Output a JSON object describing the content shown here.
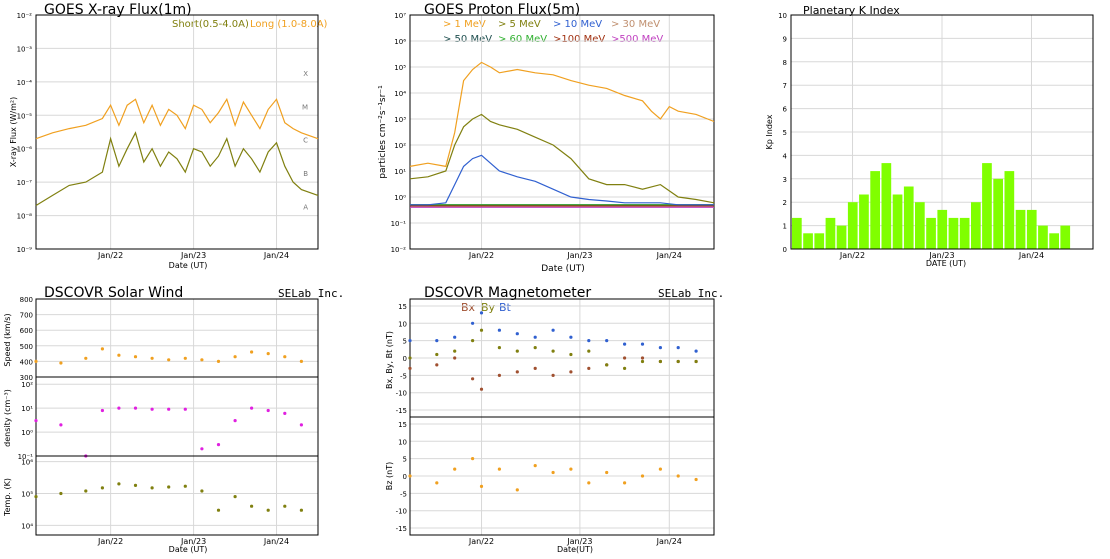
{
  "panels": {
    "xray": {
      "title": "GOES X-ray Flux(1m)",
      "legend_short": "Short(0.5-4.0A)",
      "legend_long": "Long (1.0-8.0A)",
      "ylabel": "X-ray Flux (W/m²)",
      "xlabel": "Date (UT)",
      "yticks": [
        "10⁻⁹",
        "10⁻⁸",
        "10⁻⁷",
        "10⁻⁶",
        "10⁻⁵",
        "10⁻⁴",
        "10⁻³",
        "10⁻²"
      ],
      "classes": [
        "A",
        "B",
        "C",
        "M",
        "X"
      ],
      "xticks": [
        "Jan/22",
        "Jan/23",
        "Jan/24"
      ]
    },
    "proton": {
      "title": "GOES Proton Flux(5m)",
      "ylabel": "particles cm⁻²s⁻¹sr⁻¹",
      "xlabel": "Date (UT)",
      "yticks": [
        "10⁻²",
        "10⁻¹",
        "10⁰",
        "10¹",
        "10²",
        "10³",
        "10⁴",
        "10⁵",
        "10⁶",
        "10⁷"
      ],
      "legend": [
        "> 1 MeV",
        "> 5 MeV",
        "> 10 MeV",
        "> 30 MeV",
        "> 50 MeV",
        "> 60 MeV",
        ">100 MeV",
        ">500 MeV"
      ],
      "xticks": [
        "Jan/22",
        "Jan/23",
        "Jan/24"
      ]
    },
    "kp": {
      "title": "Planetary K Index",
      "ylabel": "Kp Index",
      "xlabel": "DATE (UT)",
      "yticks": [
        "0",
        "1",
        "2",
        "3",
        "4",
        "5",
        "6",
        "7",
        "8",
        "9",
        "10"
      ],
      "xticks": [
        "Jan/22",
        "Jan/23",
        "Jan/24"
      ]
    },
    "wind": {
      "title": "DSCOVR Solar Wind",
      "brand": "SELab Inc.",
      "speed_label": "Speed (km/s)",
      "speed_ticks": [
        "300",
        "400",
        "500",
        "600",
        "700",
        "800"
      ],
      "density_label": "density (cm⁻³)",
      "density_ticks": [
        "10⁻¹",
        "10⁰",
        "10¹",
        "10²"
      ],
      "temp_label": "Temp. (K)",
      "temp_ticks": [
        "10⁴",
        "10⁵",
        "10⁶"
      ],
      "xlabel": "Date (UT)",
      "xticks": [
        "Jan/22",
        "Jan/23",
        "Jan/24"
      ]
    },
    "mag": {
      "title": "DSCOVR Magnetometer",
      "brand": "SELab Inc.",
      "legend": [
        "Bx",
        "By",
        "Bt"
      ],
      "b_label": "Bx, By, Bt (nT)",
      "bz_label": "Bz (nT)",
      "ticks": [
        "-15",
        "-10",
        "-5",
        "0",
        "5",
        "10",
        "15"
      ],
      "xlabel": "Date(UT)",
      "xticks": [
        "Jan/22",
        "Jan/23",
        "Jan/24"
      ]
    }
  },
  "chart_data": [
    {
      "type": "line",
      "title": "GOES X-ray Flux(1m)",
      "ylabel": "X-ray Flux (W/m²)",
      "xlabel": "Date (UT)",
      "yscale": "log",
      "ylim": [
        1e-09,
        0.01
      ],
      "xlim": [
        0,
        3.4
      ],
      "xticks": {
        "values": [
          0.9,
          1.9,
          2.9
        ],
        "labels": [
          "Jan/22",
          "Jan/23",
          "Jan/24"
        ]
      },
      "series": [
        {
          "name": "Long (1.0-8.0A)",
          "color": "#f0a020",
          "x": [
            0,
            0.2,
            0.4,
            0.6,
            0.8,
            0.9,
            1.0,
            1.1,
            1.2,
            1.3,
            1.4,
            1.5,
            1.6,
            1.7,
            1.8,
            1.9,
            2.0,
            2.1,
            2.2,
            2.3,
            2.4,
            2.5,
            2.6,
            2.7,
            2.8,
            2.9,
            3.0,
            3.1,
            3.2,
            3.4
          ],
          "y": [
            2e-06,
            3e-06,
            4e-06,
            5e-06,
            8e-06,
            2e-05,
            5e-06,
            2e-05,
            3e-05,
            6e-06,
            2e-05,
            5e-06,
            1.5e-05,
            1e-05,
            4e-06,
            2e-05,
            1.5e-05,
            6e-06,
            1.2e-05,
            3e-05,
            5e-06,
            2.5e-05,
            1e-05,
            4e-06,
            1.5e-05,
            3e-05,
            6e-06,
            4e-06,
            3e-06,
            2e-06
          ]
        },
        {
          "name": "Short(0.5-4.0A)",
          "color": "#808010",
          "x": [
            0,
            0.2,
            0.4,
            0.6,
            0.8,
            0.9,
            1.0,
            1.1,
            1.2,
            1.3,
            1.4,
            1.5,
            1.6,
            1.7,
            1.8,
            1.9,
            2.0,
            2.1,
            2.2,
            2.3,
            2.4,
            2.5,
            2.6,
            2.7,
            2.8,
            2.9,
            3.0,
            3.1,
            3.2,
            3.4
          ],
          "y": [
            2e-08,
            4e-08,
            8e-08,
            1e-07,
            2e-07,
            2e-06,
            3e-07,
            1e-06,
            3e-06,
            4e-07,
            1e-06,
            3e-07,
            8e-07,
            5e-07,
            2e-07,
            1e-06,
            8e-07,
            3e-07,
            6e-07,
            2e-06,
            3e-07,
            1e-06,
            5e-07,
            2e-07,
            8e-07,
            1.5e-06,
            3e-07,
            1e-07,
            6e-08,
            4e-08
          ]
        }
      ]
    },
    {
      "type": "line",
      "title": "GOES Proton Flux(5m)",
      "ylabel": "particles cm⁻²s⁻¹sr⁻¹",
      "xlabel": "Date (UT)",
      "yscale": "log",
      "ylim": [
        0.01,
        10000000.0
      ],
      "xlim": [
        0,
        3.4
      ],
      "xticks": {
        "values": [
          0.8,
          1.9,
          2.9
        ],
        "labels": [
          "Jan/22",
          "Jan/23",
          "Jan/24"
        ]
      },
      "series": [
        {
          "name": "> 1 MeV",
          "color": "#f0a020",
          "x": [
            0,
            0.2,
            0.4,
            0.5,
            0.6,
            0.7,
            0.8,
            0.9,
            1.0,
            1.2,
            1.4,
            1.6,
            1.8,
            2.0,
            2.2,
            2.4,
            2.6,
            2.7,
            2.8,
            2.9,
            3.0,
            3.2,
            3.4
          ],
          "y": [
            15,
            20,
            15,
            300,
            30000,
            80000,
            150000,
            100000,
            60000,
            80000,
            60000,
            50000,
            30000,
            20000,
            15000,
            8000,
            5000,
            2000,
            1000,
            3000,
            2000,
            1500,
            800
          ]
        },
        {
          "name": "> 5 MeV",
          "color": "#808010",
          "x": [
            0,
            0.2,
            0.4,
            0.5,
            0.6,
            0.7,
            0.8,
            0.9,
            1.0,
            1.2,
            1.4,
            1.6,
            1.8,
            2.0,
            2.2,
            2.4,
            2.6,
            2.8,
            3.0,
            3.2,
            3.4
          ],
          "y": [
            5,
            6,
            10,
            100,
            500,
            1000,
            1500,
            800,
            600,
            400,
            200,
            100,
            30,
            5,
            3,
            3,
            2,
            3,
            1,
            0.8,
            0.6
          ]
        },
        {
          "name": "> 10 MeV",
          "color": "#3060d0",
          "x": [
            0,
            0.2,
            0.4,
            0.5,
            0.6,
            0.7,
            0.8,
            0.9,
            1.0,
            1.2,
            1.4,
            1.6,
            1.8,
            2.0,
            2.2,
            2.4,
            2.6,
            2.8,
            3.0,
            3.2,
            3.4
          ],
          "y": [
            0.5,
            0.5,
            0.6,
            3,
            15,
            30,
            40,
            20,
            10,
            6,
            4,
            2,
            1,
            0.8,
            0.7,
            0.6,
            0.6,
            0.6,
            0.5,
            0.5,
            0.5
          ]
        },
        {
          "name": "> 30 MeV",
          "color": "#c09070",
          "x": [
            0,
            1,
            2,
            3,
            3.4
          ],
          "y": [
            0.5,
            0.5,
            0.5,
            0.5,
            0.5
          ]
        },
        {
          "name": "> 50 MeV",
          "color": "#205050",
          "x": [
            0,
            1,
            2,
            3,
            3.4
          ],
          "y": [
            0.5,
            0.5,
            0.5,
            0.5,
            0.5
          ]
        },
        {
          "name": "> 60 MeV",
          "color": "#30b030",
          "x": [
            0,
            1,
            2,
            3,
            3.4
          ],
          "y": [
            0.5,
            0.5,
            0.5,
            0.5,
            0.5
          ]
        },
        {
          "name": ">100 MeV",
          "color": "#a03010",
          "x": [
            0,
            1,
            2,
            3,
            3.4
          ],
          "y": [
            0.45,
            0.45,
            0.45,
            0.45,
            0.45
          ]
        },
        {
          "name": ">500 MeV",
          "color": "#c040c0",
          "x": [
            0,
            1,
            2,
            3,
            3.4
          ],
          "y": [
            0.4,
            0.4,
            0.4,
            0.4,
            0.4
          ]
        }
      ]
    },
    {
      "type": "bar",
      "title": "Planetary K Index",
      "ylabel": "Kp Index",
      "xlabel": "DATE (UT)",
      "ylim": [
        0,
        10
      ],
      "color": "#80ff00",
      "xticks": {
        "labels": [
          "Jan/22",
          "Jan/23",
          "Jan/24"
        ],
        "bar_index": [
          5,
          13,
          21
        ]
      },
      "values": [
        1.33,
        0.67,
        0.67,
        1.33,
        1.0,
        2.0,
        2.33,
        3.33,
        3.67,
        2.33,
        2.67,
        2.0,
        1.33,
        1.67,
        1.33,
        1.33,
        2.0,
        3.67,
        3.0,
        3.33,
        1.67,
        1.67,
        1.0,
        0.67,
        1.0
      ]
    },
    {
      "type": "scatter",
      "title": "DSCOVR Solar Wind",
      "xlabel": "Date (UT)",
      "xlim": [
        0,
        3.4
      ],
      "xticks": {
        "values": [
          0.9,
          1.9,
          2.9
        ],
        "labels": [
          "Jan/22",
          "Jan/23",
          "Jan/24"
        ]
      },
      "subplots": [
        {
          "ylabel": "Speed (km/s)",
          "ylim": [
            300,
            800
          ],
          "color": "#f0a020",
          "x": [
            0,
            0.3,
            0.6,
            0.8,
            1.0,
            1.2,
            1.4,
            1.6,
            1.8,
            2.0,
            2.2,
            2.4,
            2.6,
            2.8,
            3.0,
            3.2
          ],
          "y": [
            400,
            390,
            420,
            480,
            440,
            430,
            420,
            410,
            420,
            410,
            400,
            430,
            460,
            450,
            430,
            400
          ]
        },
        {
          "ylabel": "density (cm⁻³)",
          "yscale": "log",
          "ylim": [
            0.1,
            200
          ],
          "color": "#e020e0",
          "x": [
            0,
            0.3,
            0.6,
            0.8,
            1.0,
            1.2,
            1.4,
            1.6,
            1.8,
            2.0,
            2.2,
            2.4,
            2.6,
            2.8,
            3.0,
            3.2
          ],
          "y": [
            3,
            2,
            0.1,
            8,
            10,
            10,
            9,
            9,
            9,
            0.2,
            0.3,
            3,
            10,
            8,
            6,
            2
          ]
        },
        {
          "ylabel": "Temp. (K)",
          "yscale": "log",
          "ylim": [
            5000,
            1500000
          ],
          "color": "#808010",
          "x": [
            0,
            0.3,
            0.6,
            0.8,
            1.0,
            1.2,
            1.4,
            1.6,
            1.8,
            2.0,
            2.2,
            2.4,
            2.6,
            2.8,
            3.0,
            3.2
          ],
          "y": [
            80000,
            100000,
            120000,
            150000,
            200000,
            180000,
            150000,
            160000,
            170000,
            120000,
            30000,
            80000,
            40000,
            30000,
            40000,
            30000
          ]
        }
      ]
    },
    {
      "type": "scatter",
      "title": "DSCOVR Magnetometer",
      "xlabel": "Date(UT)",
      "xlim": [
        0,
        3.4
      ],
      "xticks": {
        "values": [
          0.8,
          1.9,
          2.9
        ],
        "labels": [
          "Jan/22",
          "Jan/23",
          "Jan/24"
        ]
      },
      "subplots": [
        {
          "ylabel": "Bx, By, Bt (nT)",
          "ylim": [
            -17,
            17
          ],
          "series": [
            {
              "name": "Bt",
              "color": "#3060d0",
              "x": [
                0,
                0.3,
                0.5,
                0.7,
                0.8,
                1.0,
                1.2,
                1.4,
                1.6,
                1.8,
                2.0,
                2.2,
                2.4,
                2.6,
                2.8,
                3.0,
                3.2
              ],
              "y": [
                5,
                5,
                6,
                10,
                13,
                8,
                7,
                6,
                8,
                6,
                5,
                5,
                4,
                4,
                3,
                3,
                2
              ]
            },
            {
              "name": "Bx",
              "color": "#a05030",
              "x": [
                0,
                0.3,
                0.5,
                0.7,
                0.8,
                1.0,
                1.2,
                1.4,
                1.6,
                1.8,
                2.0,
                2.2,
                2.4,
                2.6,
                2.8,
                3.0,
                3.2
              ],
              "y": [
                -3,
                -2,
                0,
                -6,
                -9,
                -5,
                -4,
                -3,
                -5,
                -4,
                -3,
                -2,
                0,
                0,
                -1,
                -1,
                -1
              ]
            },
            {
              "name": "By",
              "color": "#808010",
              "x": [
                0,
                0.3,
                0.5,
                0.7,
                0.8,
                1.0,
                1.2,
                1.4,
                1.6,
                1.8,
                2.0,
                2.2,
                2.4,
                2.6,
                2.8,
                3.0,
                3.2
              ],
              "y": [
                0,
                1,
                2,
                5,
                8,
                3,
                2,
                3,
                2,
                1,
                2,
                -2,
                -3,
                -1,
                -1,
                -1,
                -1
              ]
            }
          ]
        },
        {
          "ylabel": "Bz (nT)",
          "ylim": [
            -17,
            17
          ],
          "color": "#f0a020",
          "x": [
            0,
            0.3,
            0.5,
            0.7,
            0.8,
            1.0,
            1.2,
            1.4,
            1.6,
            1.8,
            2.0,
            2.2,
            2.4,
            2.6,
            2.8,
            3.0,
            3.2
          ],
          "y": [
            0,
            -2,
            2,
            5,
            -3,
            2,
            -4,
            3,
            1,
            2,
            -2,
            1,
            -2,
            0,
            2,
            0,
            -1
          ]
        }
      ]
    }
  ]
}
